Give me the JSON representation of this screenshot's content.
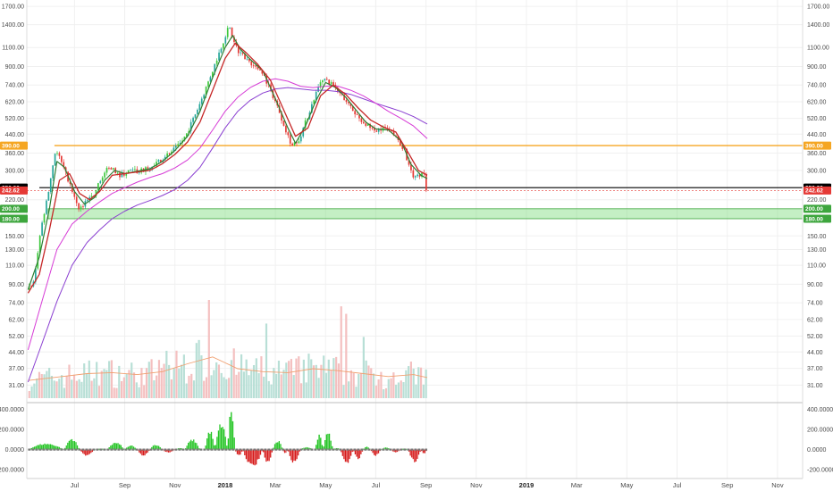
{
  "colors": {
    "up": "#26a69a",
    "up_bright": "#3cc83c",
    "down": "#e53935",
    "ema_fast": "#2e7d32",
    "ema_slow": "#c62828",
    "ma_magenta": "#d63bd6",
    "ma_purple": "#8a3fd1",
    "resistance": "#f5a623",
    "support_zone": "#7cdb7c",
    "price_line": "#000000",
    "current_badge": "#e53935",
    "volume_up": "#b8dfd6",
    "volume_down": "#f4c0c0",
    "volume_ma": "#f0a070",
    "osc_pos": "#22c422",
    "osc_neg": "#d61a1a",
    "osc_zero": "#7a7a7a",
    "grid": "#f0f0f0"
  },
  "chart_data": {
    "type": "candlestick",
    "price_scale": "log",
    "ylim": [
      27,
      1750
    ],
    "y_ticks": [
      "1700.00",
      "1400.00",
      "1100.00",
      "900.00",
      "740.00",
      "620.00",
      "520.00",
      "440.00",
      "360.00",
      "300.00",
      "220.00",
      "180.00",
      "150.00",
      "130.00",
      "110.00",
      "90.00",
      "74.00",
      "62.00",
      "52.00",
      "44.00",
      "37.00",
      "31.00"
    ],
    "y_tick_values": [
      1700,
      1400,
      1100,
      900,
      740,
      620,
      520,
      440,
      360,
      300,
      220,
      180,
      150,
      130,
      110,
      90,
      74,
      62,
      52,
      44,
      37,
      31
    ],
    "x_labels": [
      "Jul",
      "Sep",
      "Nov",
      "2018",
      "Mar",
      "May",
      "Jul",
      "Sep",
      "Nov",
      "2019",
      "Mar",
      "May",
      "Jul",
      "Sep",
      "Nov"
    ],
    "x_bold": [
      "2018",
      "2019"
    ],
    "x_label_months": [
      1,
      3,
      5,
      7,
      9,
      11,
      13,
      15,
      17,
      19,
      21,
      23,
      25,
      27,
      29
    ],
    "x_range_months": [
      -0.9,
      30.0
    ],
    "price_path": [
      [
        -0.85,
        85
      ],
      [
        -0.6,
        90
      ],
      [
        -0.3,
        160
      ],
      [
        0.0,
        240
      ],
      [
        0.3,
        380
      ],
      [
        0.5,
        330
      ],
      [
        0.8,
        270
      ],
      [
        1.0,
        230
      ],
      [
        1.2,
        200
      ],
      [
        1.5,
        215
      ],
      [
        1.8,
        230
      ],
      [
        2.0,
        260
      ],
      [
        2.3,
        300
      ],
      [
        2.5,
        310
      ],
      [
        2.8,
        285
      ],
      [
        3.0,
        290
      ],
      [
        3.3,
        300
      ],
      [
        3.6,
        295
      ],
      [
        4.0,
        310
      ],
      [
        4.4,
        330
      ],
      [
        4.8,
        360
      ],
      [
        5.2,
        390
      ],
      [
        5.5,
        440
      ],
      [
        5.9,
        560
      ],
      [
        6.2,
        680
      ],
      [
        6.6,
        900
      ],
      [
        7.0,
        1200
      ],
      [
        7.2,
        1380
      ],
      [
        7.4,
        1150
      ],
      [
        7.6,
        1050
      ],
      [
        7.9,
        980
      ],
      [
        8.2,
        900
      ],
      [
        8.5,
        860
      ],
      [
        8.8,
        720
      ],
      [
        9.1,
        600
      ],
      [
        9.4,
        480
      ],
      [
        9.7,
        390
      ],
      [
        10.0,
        420
      ],
      [
        10.3,
        520
      ],
      [
        10.6,
        650
      ],
      [
        10.9,
        800
      ],
      [
        11.2,
        760
      ],
      [
        11.5,
        700
      ],
      [
        11.8,
        640
      ],
      [
        12.1,
        570
      ],
      [
        12.4,
        520
      ],
      [
        12.7,
        480
      ],
      [
        13.0,
        460
      ],
      [
        13.3,
        470
      ],
      [
        13.6,
        455
      ],
      [
        13.9,
        420
      ],
      [
        14.2,
        370
      ],
      [
        14.4,
        300
      ],
      [
        14.6,
        275
      ],
      [
        14.8,
        285
      ],
      [
        15.0,
        290
      ],
      [
        15.05,
        243
      ]
    ],
    "ema_fast_path": [
      [
        -0.85,
        85
      ],
      [
        -0.4,
        120
      ],
      [
        0.0,
        200
      ],
      [
        0.3,
        330
      ],
      [
        0.6,
        310
      ],
      [
        1.0,
        240
      ],
      [
        1.4,
        210
      ],
      [
        1.8,
        225
      ],
      [
        2.2,
        270
      ],
      [
        2.6,
        300
      ],
      [
        3.0,
        290
      ],
      [
        3.5,
        297
      ],
      [
        4.0,
        305
      ],
      [
        4.5,
        330
      ],
      [
        5.0,
        370
      ],
      [
        5.5,
        430
      ],
      [
        6.0,
        560
      ],
      [
        6.5,
        800
      ],
      [
        7.0,
        1100
      ],
      [
        7.3,
        1250
      ],
      [
        7.6,
        1080
      ],
      [
        8.0,
        970
      ],
      [
        8.5,
        860
      ],
      [
        9.0,
        640
      ],
      [
        9.5,
        470
      ],
      [
        9.8,
        400
      ],
      [
        10.2,
        480
      ],
      [
        10.6,
        620
      ],
      [
        11.0,
        760
      ],
      [
        11.4,
        720
      ],
      [
        11.8,
        650
      ],
      [
        12.2,
        570
      ],
      [
        12.6,
        500
      ],
      [
        13.0,
        465
      ],
      [
        13.5,
        460
      ],
      [
        14.0,
        410
      ],
      [
        14.4,
        320
      ],
      [
        14.8,
        285
      ],
      [
        15.05,
        275
      ]
    ],
    "ema_slow_path": [
      [
        -0.85,
        82
      ],
      [
        -0.4,
        100
      ],
      [
        0.0,
        160
      ],
      [
        0.4,
        270
      ],
      [
        0.8,
        290
      ],
      [
        1.2,
        235
      ],
      [
        1.6,
        220
      ],
      [
        2.0,
        240
      ],
      [
        2.5,
        285
      ],
      [
        3.0,
        290
      ],
      [
        3.5,
        295
      ],
      [
        4.0,
        300
      ],
      [
        4.5,
        322
      ],
      [
        5.0,
        355
      ],
      [
        5.5,
        405
      ],
      [
        6.0,
        500
      ],
      [
        6.5,
        700
      ],
      [
        7.0,
        980
      ],
      [
        7.4,
        1150
      ],
      [
        7.8,
        1050
      ],
      [
        8.3,
        920
      ],
      [
        8.8,
        780
      ],
      [
        9.3,
        580
      ],
      [
        9.8,
        430
      ],
      [
        10.3,
        470
      ],
      [
        10.8,
        660
      ],
      [
        11.3,
        740
      ],
      [
        11.8,
        670
      ],
      [
        12.3,
        580
      ],
      [
        12.8,
        510
      ],
      [
        13.3,
        475
      ],
      [
        13.8,
        450
      ],
      [
        14.3,
        360
      ],
      [
        14.7,
        300
      ],
      [
        15.05,
        285
      ]
    ],
    "ma_magenta_path": [
      [
        -0.85,
        45
      ],
      [
        -0.3,
        75
      ],
      [
        0.3,
        130
      ],
      [
        0.9,
        170
      ],
      [
        1.5,
        195
      ],
      [
        2.0,
        215
      ],
      [
        2.5,
        235
      ],
      [
        3.0,
        250
      ],
      [
        3.5,
        265
      ],
      [
        4.0,
        278
      ],
      [
        4.5,
        290
      ],
      [
        5.0,
        308
      ],
      [
        5.5,
        335
      ],
      [
        6.0,
        380
      ],
      [
        6.5,
        460
      ],
      [
        7.0,
        560
      ],
      [
        7.5,
        650
      ],
      [
        8.0,
        720
      ],
      [
        8.5,
        770
      ],
      [
        9.0,
        790
      ],
      [
        9.5,
        770
      ],
      [
        10.0,
        730
      ],
      [
        10.5,
        720
      ],
      [
        11.0,
        730
      ],
      [
        11.5,
        730
      ],
      [
        12.0,
        700
      ],
      [
        12.5,
        660
      ],
      [
        13.0,
        610
      ],
      [
        13.5,
        560
      ],
      [
        14.0,
        520
      ],
      [
        14.5,
        480
      ],
      [
        15.05,
        420
      ]
    ],
    "ma_purple_path": [
      [
        -0.85,
        32
      ],
      [
        -0.3,
        48
      ],
      [
        0.3,
        75
      ],
      [
        0.9,
        110
      ],
      [
        1.5,
        140
      ],
      [
        2.0,
        160
      ],
      [
        2.5,
        180
      ],
      [
        3.0,
        195
      ],
      [
        3.5,
        208
      ],
      [
        4.0,
        218
      ],
      [
        4.5,
        230
      ],
      [
        5.0,
        245
      ],
      [
        5.5,
        270
      ],
      [
        6.0,
        310
      ],
      [
        6.5,
        380
      ],
      [
        7.0,
        470
      ],
      [
        7.5,
        560
      ],
      [
        8.0,
        630
      ],
      [
        8.5,
        680
      ],
      [
        9.0,
        710
      ],
      [
        9.5,
        720
      ],
      [
        10.0,
        710
      ],
      [
        10.5,
        700
      ],
      [
        11.0,
        700
      ],
      [
        11.5,
        690
      ],
      [
        12.0,
        670
      ],
      [
        12.5,
        640
      ],
      [
        13.0,
        610
      ],
      [
        13.5,
        585
      ],
      [
        14.0,
        560
      ],
      [
        14.5,
        530
      ],
      [
        15.05,
        490
      ]
    ],
    "horizontal_levels": [
      {
        "label": "390.00",
        "value": 390,
        "kind": "resistance"
      },
      {
        "label": "250.00",
        "value": 250,
        "kind": "price_line"
      }
    ],
    "current_price": {
      "label": "242.62",
      "value": 242.62
    },
    "support_zone": {
      "top_label": "200.00",
      "bottom_label": "180.00",
      "top": 200,
      "bottom": 180
    },
    "volume": {
      "range_months": [
        -0.85,
        15.05
      ],
      "bars": 160,
      "ma_path": [
        [
          -0.85,
          0.18
        ],
        [
          0.5,
          0.22
        ],
        [
          1.5,
          0.25
        ],
        [
          2.5,
          0.26
        ],
        [
          3.5,
          0.24
        ],
        [
          4.5,
          0.27
        ],
        [
          5.5,
          0.35
        ],
        [
          6.5,
          0.42
        ],
        [
          7.0,
          0.36
        ],
        [
          7.5,
          0.3
        ],
        [
          8.5,
          0.27
        ],
        [
          9.5,
          0.26
        ],
        [
          10.5,
          0.3
        ],
        [
          11.5,
          0.28
        ],
        [
          12.5,
          0.25
        ],
        [
          13.5,
          0.22
        ],
        [
          14.5,
          0.24
        ],
        [
          15.05,
          0.21
        ]
      ]
    },
    "oscillator": {
      "y_ticks": [
        "400.0000",
        "200.0000",
        "0.0000",
        "-200.0000"
      ],
      "y_tick_values": [
        400,
        200,
        0,
        -200
      ],
      "ylim": [
        -260,
        430
      ],
      "segments": [
        [
          -0.85,
          0.6,
          60
        ],
        [
          0.6,
          1.2,
          110
        ],
        [
          1.2,
          1.8,
          -60
        ],
        [
          1.8,
          2.3,
          10
        ],
        [
          2.3,
          3.0,
          70
        ],
        [
          3.0,
          3.5,
          40
        ],
        [
          3.5,
          4.0,
          -60
        ],
        [
          4.0,
          4.5,
          50
        ],
        [
          4.5,
          5.0,
          -30
        ],
        [
          5.0,
          5.4,
          15
        ],
        [
          5.4,
          6.0,
          100
        ],
        [
          6.2,
          6.6,
          190
        ],
        [
          6.6,
          7.1,
          260
        ],
        [
          7.1,
          7.4,
          400
        ],
        [
          7.4,
          7.7,
          -60
        ],
        [
          7.7,
          8.5,
          -170
        ],
        [
          8.5,
          8.9,
          -140
        ],
        [
          8.9,
          9.3,
          90
        ],
        [
          9.3,
          9.5,
          -40
        ],
        [
          9.5,
          10.0,
          -130
        ],
        [
          10.0,
          10.5,
          25
        ],
        [
          10.6,
          10.9,
          150
        ],
        [
          10.9,
          11.3,
          170
        ],
        [
          11.3,
          11.6,
          15
        ],
        [
          11.6,
          12.1,
          -140
        ],
        [
          12.1,
          12.5,
          -90
        ],
        [
          12.5,
          12.8,
          30
        ],
        [
          12.8,
          13.2,
          -60
        ],
        [
          13.2,
          13.6,
          20
        ],
        [
          13.6,
          14.0,
          -30
        ],
        [
          14.0,
          14.3,
          10
        ],
        [
          14.3,
          14.8,
          -120
        ],
        [
          14.8,
          15.05,
          -40
        ]
      ]
    }
  }
}
